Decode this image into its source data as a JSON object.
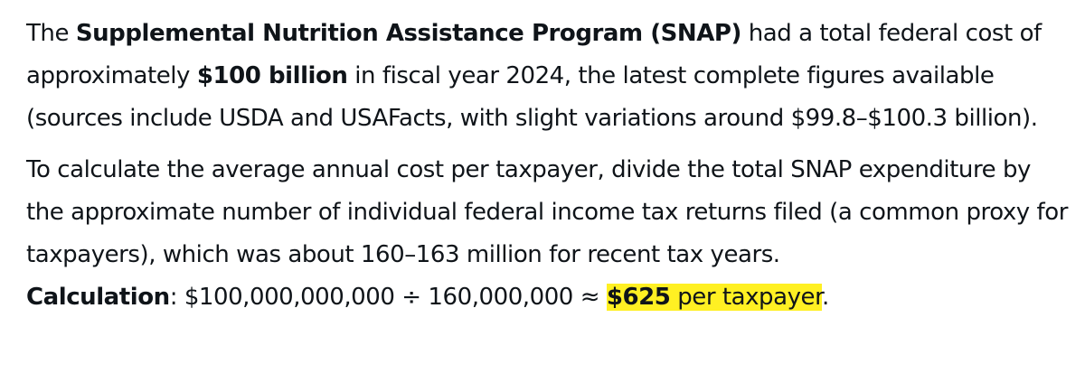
{
  "paragraph1": {
    "t1": "The ",
    "b1": "Supplemental Nutrition Assistance Program (SNAP)",
    "t2": " had a total federal cost of approximately ",
    "b2": "$100 billion",
    "t3": " in fiscal year 2024, the latest complete figures available (sources include USDA and USAFacts, with slight variations around $99.8–$100.3 billion)."
  },
  "paragraph2": {
    "text": "To calculate the average annual cost per taxpayer, divide the total SNAP expenditure by the approximate number of individual federal income tax returns filed (a common proxy for taxpayers), which was about 160–163 million for recent tax years."
  },
  "calculation": {
    "label": "Calculation",
    "colon": ": ",
    "expression": "$100,000,000,000 ÷ 160,000,000 ≈ ",
    "result": "$625",
    "suffix": " per taxpayer",
    "period": "."
  },
  "colors": {
    "text": "#0f1419",
    "highlight": "#fff023"
  }
}
